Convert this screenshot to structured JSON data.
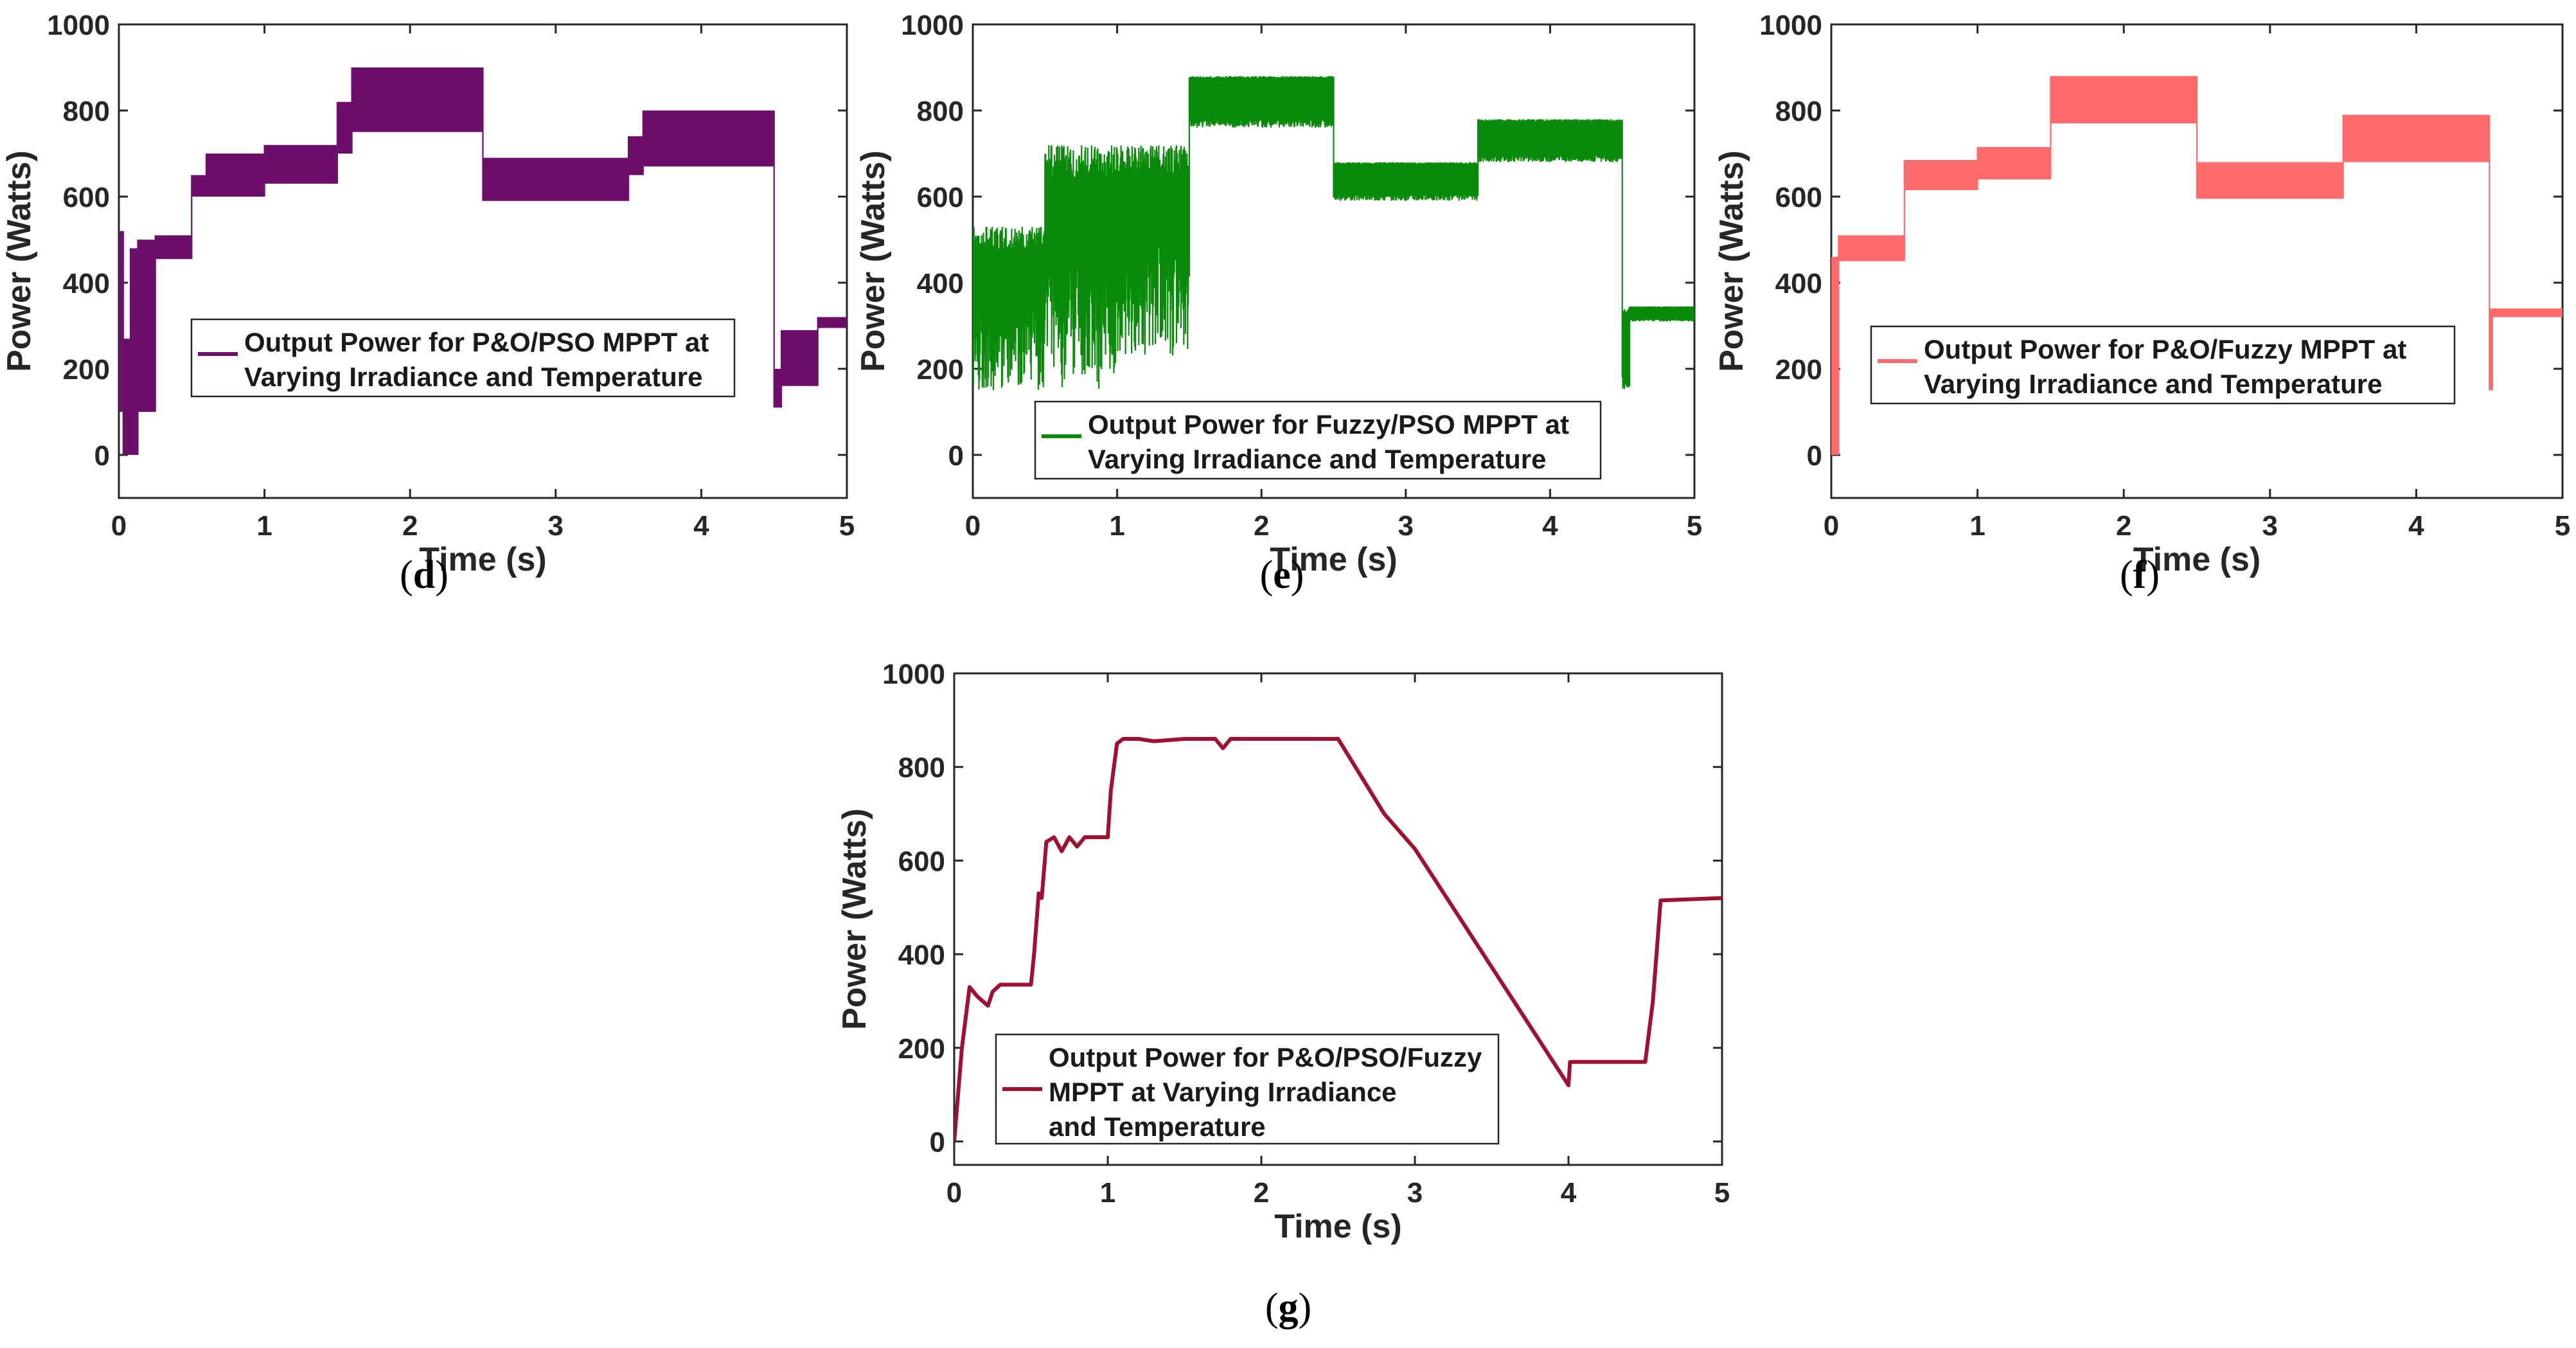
{
  "chart_data": [
    {
      "id": "d",
      "type": "line",
      "caption_letter": "d",
      "color": "#6b0f6b",
      "xlabel": "Time (s)",
      "ylabel": "Power (Watts)",
      "xlim": [
        0,
        5
      ],
      "ylim": [
        -100,
        1000
      ],
      "xticks": [
        0,
        1,
        2,
        3,
        4,
        5
      ],
      "yticks": [
        0,
        200,
        400,
        600,
        800,
        1000
      ],
      "legend": [
        "Output Power for P&O/PSO MPPT at",
        "Varying Irradiance and Temperature"
      ],
      "legend_location": "middle-right",
      "series": [
        {
          "name": "Output Power for P&O/PSO MPPT at Varying Irradiance and Temperature",
          "style": "band",
          "ripple_band": true,
          "segments": [
            {
              "t": [
                0,
                0.03
              ],
              "low": 100,
              "high": 520
            },
            {
              "t": [
                0.03,
                0.08
              ],
              "low": 0,
              "high": 270
            },
            {
              "t": [
                0.08,
                0.13
              ],
              "low": 0,
              "high": 480
            },
            {
              "t": [
                0.13,
                0.25
              ],
              "low": 100,
              "high": 500
            },
            {
              "t": [
                0.25,
                0.5
              ],
              "low": 455,
              "high": 510
            },
            {
              "t": [
                0.5,
                0.6
              ],
              "low": 600,
              "high": 650
            },
            {
              "t": [
                0.6,
                1.0
              ],
              "low": 600,
              "high": 700
            },
            {
              "t": [
                1.0,
                1.5
              ],
              "low": 630,
              "high": 720
            },
            {
              "t": [
                1.5,
                1.6
              ],
              "low": 700,
              "high": 820
            },
            {
              "t": [
                1.6,
                2.5
              ],
              "low": 750,
              "high": 900
            },
            {
              "t": [
                2.5,
                3.5
              ],
              "low": 590,
              "high": 690
            },
            {
              "t": [
                3.5,
                3.6
              ],
              "low": 650,
              "high": 740
            },
            {
              "t": [
                3.6,
                4.5
              ],
              "low": 670,
              "high": 800
            },
            {
              "t": [
                4.5,
                4.55
              ],
              "low": 110,
              "high": 200
            },
            {
              "t": [
                4.55,
                4.8
              ],
              "low": 160,
              "high": 290
            },
            {
              "t": [
                4.8,
                5.0
              ],
              "low": 295,
              "high": 320
            }
          ]
        }
      ]
    },
    {
      "id": "e",
      "type": "line",
      "caption_letter": "e",
      "color": "#0a8a0a",
      "xlabel": "Time (s)",
      "ylabel": "Power (Watts)",
      "xlim": [
        0,
        5
      ],
      "ylim": [
        -100,
        1000
      ],
      "xticks": [
        0,
        1,
        2,
        3,
        4,
        5
      ],
      "yticks": [
        0,
        200,
        400,
        600,
        800,
        1000
      ],
      "legend": [
        "Output Power for Fuzzy/PSO MPPT at",
        "Varying Irradiance and Temperature"
      ],
      "legend_location": "lower-right",
      "series": [
        {
          "name": "Output Power for Fuzzy/PSO MPPT at Varying Irradiance and Temperature",
          "style": "noisy-band",
          "ripple_band": true,
          "segments": [
            {
              "t": [
                0,
                0.5
              ],
              "low": 150,
              "high": 530
            },
            {
              "t": [
                0.5,
                1.0
              ],
              "low": 150,
              "high": 720
            },
            {
              "t": [
                1.0,
                1.5
              ],
              "low": 230,
              "high": 720
            },
            {
              "t": [
                1.5,
                2.5
              ],
              "low": 760,
              "high": 880
            },
            {
              "t": [
                2.5,
                3.5
              ],
              "low": 590,
              "high": 680
            },
            {
              "t": [
                3.5,
                4.5
              ],
              "low": 680,
              "high": 780
            },
            {
              "t": [
                4.5,
                4.55
              ],
              "low": 150,
              "high": 340
            },
            {
              "t": [
                4.55,
                5.0
              ],
              "low": 310,
              "high": 345
            }
          ]
        }
      ]
    },
    {
      "id": "f",
      "type": "line",
      "caption_letter": "f",
      "color": "#ff6b6b",
      "xlabel": "Time (s)",
      "ylabel": "Power (Watts)",
      "xlim": [
        0,
        5
      ],
      "ylim": [
        -100,
        1000
      ],
      "xticks": [
        0,
        1,
        2,
        3,
        4,
        5
      ],
      "yticks": [
        0,
        200,
        400,
        600,
        800,
        1000
      ],
      "legend": [
        "Output Power for P&O/Fuzzy MPPT at",
        "Varying Irradiance and Temperature"
      ],
      "legend_location": "middle-right",
      "series": [
        {
          "name": "Output Power for P&O/Fuzzy MPPT at Varying Irradiance and Temperature",
          "style": "band",
          "ripple_band": true,
          "segments": [
            {
              "t": [
                0,
                0.05
              ],
              "low": 0,
              "high": 460
            },
            {
              "t": [
                0.05,
                0.5
              ],
              "low": 450,
              "high": 510
            },
            {
              "t": [
                0.5,
                1.0
              ],
              "low": 615,
              "high": 685
            },
            {
              "t": [
                1.0,
                1.5
              ],
              "low": 640,
              "high": 715
            },
            {
              "t": [
                1.5,
                2.5
              ],
              "low": 770,
              "high": 880
            },
            {
              "t": [
                2.5,
                3.5
              ],
              "low": 595,
              "high": 680
            },
            {
              "t": [
                3.5,
                4.5
              ],
              "low": 680,
              "high": 790
            },
            {
              "t": [
                4.5,
                4.52
              ],
              "low": 150,
              "high": 340
            },
            {
              "t": [
                4.52,
                5.0
              ],
              "low": 320,
              "high": 340
            }
          ]
        }
      ]
    },
    {
      "id": "g",
      "type": "line",
      "caption_letter": "g",
      "color": "#a01030",
      "xlabel": "Time (s)",
      "ylabel": "Power (Watts)",
      "xlim": [
        0,
        5
      ],
      "ylim": [
        -50,
        1000
      ],
      "xticks": [
        0,
        1,
        2,
        3,
        4,
        5
      ],
      "yticks": [
        0,
        200,
        400,
        600,
        800,
        1000
      ],
      "legend": [
        "Output Power for P&O/PSO/Fuzzy",
        "MPPT at Varying Irradiance",
        "and Temperature"
      ],
      "legend_location": "lower-right",
      "series": [
        {
          "name": "Output Power for P&O/PSO/Fuzzy MPPT at Varying Irradiance and Temperature",
          "style": "line",
          "x": [
            0,
            0.05,
            0.1,
            0.15,
            0.22,
            0.25,
            0.3,
            0.4,
            0.5,
            0.52,
            0.55,
            0.57,
            0.6,
            0.65,
            0.7,
            0.75,
            0.8,
            0.85,
            0.9,
            1.0,
            1.02,
            1.06,
            1.1,
            1.2,
            1.3,
            1.5,
            1.7,
            1.75,
            1.8,
            2.0,
            2.5,
            2.8,
            3.0,
            4.0,
            4.01,
            4.5,
            4.55,
            4.6,
            5.0
          ],
          "y": [
            0,
            200,
            330,
            310,
            290,
            320,
            335,
            335,
            335,
            400,
            530,
            520,
            640,
            650,
            620,
            650,
            630,
            650,
            650,
            650,
            750,
            850,
            860,
            860,
            855,
            860,
            860,
            840,
            860,
            860,
            860,
            700,
            625,
            120,
            170,
            170,
            300,
            515,
            520
          ]
        }
      ]
    }
  ]
}
